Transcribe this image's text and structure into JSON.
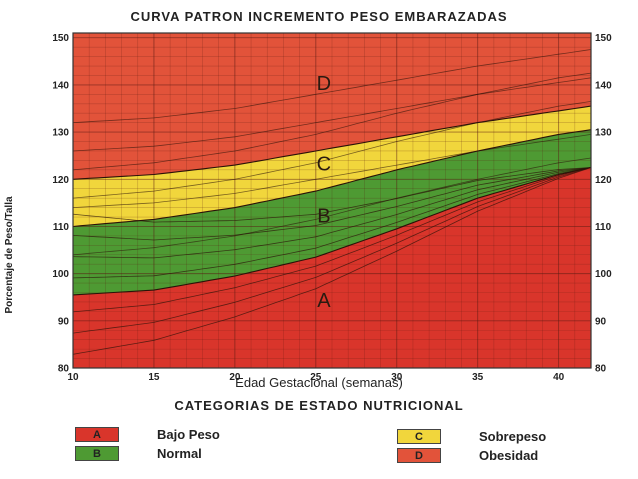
{
  "chart_data": {
    "type": "area",
    "title": "CURVA PATRON INCREMENTO PESO EMBARAZADAS",
    "xlabel": "Edad Gestacional (semanas)",
    "ylabel": "Porcentaje de Peso/Talla",
    "xlim": [
      10,
      42
    ],
    "ylim": [
      80,
      151
    ],
    "x_ticks": [
      "10",
      "15",
      "20",
      "25",
      "30",
      "35",
      "40"
    ],
    "y_ticks": [
      "80",
      "90",
      "100",
      "110",
      "120",
      "130",
      "140",
      "150"
    ],
    "grid": true,
    "x": [
      10,
      15,
      20,
      25,
      30,
      35,
      40,
      42
    ],
    "boundaries": [
      {
        "name": "A/B",
        "values": [
          95.5,
          96.5,
          99.5,
          103.5,
          109.5,
          116.0,
          121.0,
          122.5
        ]
      },
      {
        "name": "B/C",
        "values": [
          110.0,
          111.5,
          114.0,
          117.5,
          122.0,
          126.0,
          129.5,
          130.5
        ]
      },
      {
        "name": "C/D",
        "values": [
          120.0,
          121.0,
          123.0,
          126.0,
          129.0,
          132.0,
          134.5,
          135.5
        ]
      }
    ],
    "zone_labels": [
      {
        "text": "A",
        "x": 25.5,
        "y": 94
      },
      {
        "text": "B",
        "x": 25.5,
        "y": 112
      },
      {
        "text": "C",
        "x": 25.5,
        "y": 123
      },
      {
        "text": "D",
        "x": 25.5,
        "y": 140
      }
    ],
    "zone_colors": {
      "A": "#d9352b",
      "B": "#4e9a33",
      "C": "#f1d63c",
      "D": "#e2533a"
    }
  },
  "legend": {
    "title": "CATEGORIAS DE ESTADO NUTRICIONAL",
    "items": [
      {
        "code": "A",
        "label": "Bajo Peso",
        "color": "#d9352b"
      },
      {
        "code": "B",
        "label": "Normal",
        "color": "#4e9a33"
      },
      {
        "code": "C",
        "label": "Sobrepeso",
        "color": "#f1d63c"
      },
      {
        "code": "D",
        "label": "Obesidad",
        "color": "#e2533a"
      }
    ]
  }
}
